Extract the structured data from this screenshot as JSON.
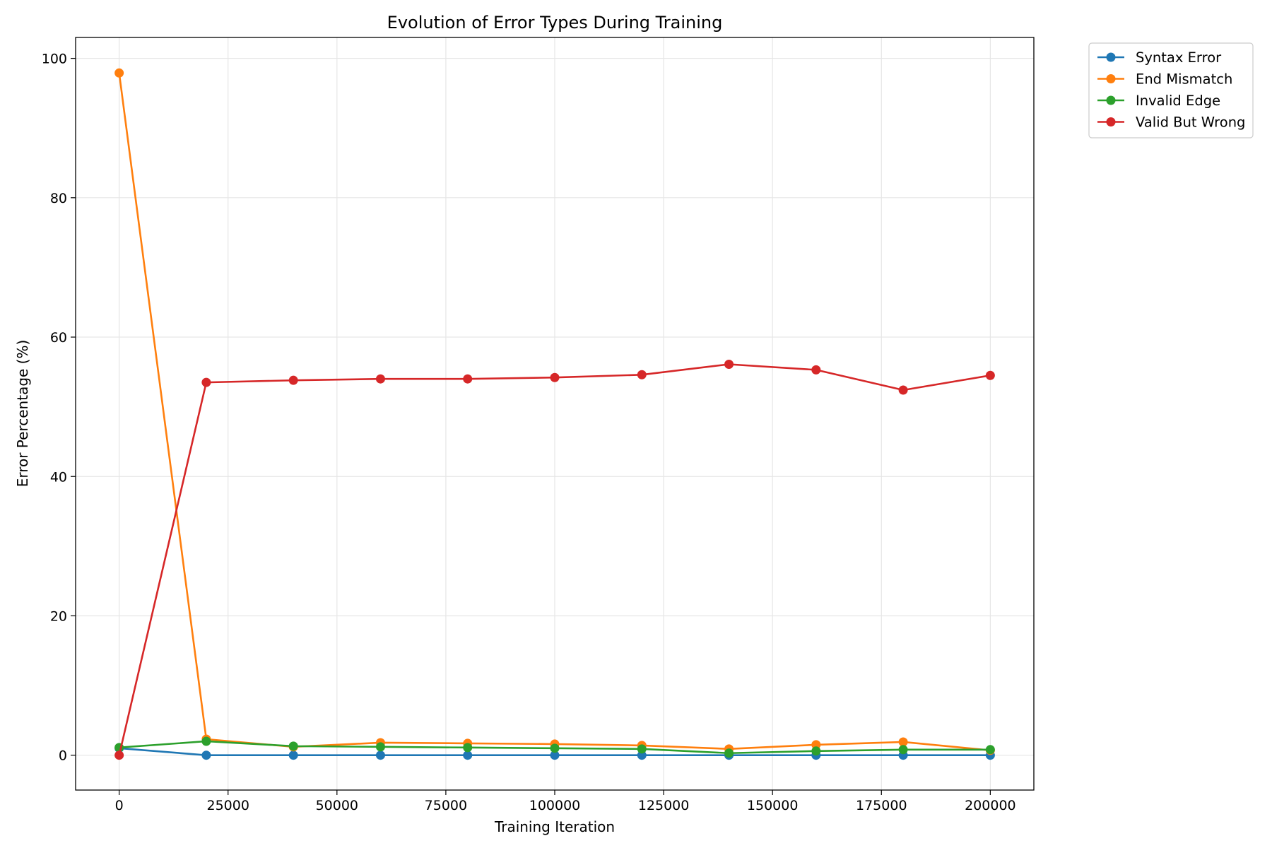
{
  "chart_data": {
    "type": "line",
    "title": "Evolution of Error Types During Training",
    "xlabel": "Training Iteration",
    "ylabel": "Error Percentage (%)",
    "xlim": [
      -10000,
      210000
    ],
    "ylim": [
      -5,
      103
    ],
    "xticks": [
      0,
      25000,
      50000,
      75000,
      100000,
      125000,
      150000,
      175000,
      200000
    ],
    "yticks": [
      0,
      20,
      40,
      60,
      80,
      100
    ],
    "grid": true,
    "legend_position": "outside-top-right",
    "x": [
      0,
      20000,
      40000,
      60000,
      80000,
      100000,
      120000,
      140000,
      160000,
      180000,
      200000
    ],
    "series": [
      {
        "name": "Syntax Error",
        "color": "#1f77b4",
        "values": [
          1.0,
          0.0,
          0.0,
          0.0,
          0.0,
          0.0,
          0.0,
          0.0,
          0.0,
          0.0,
          0.0
        ]
      },
      {
        "name": "End Mismatch",
        "color": "#ff7f0e",
        "values": [
          97.9,
          2.3,
          1.2,
          1.8,
          1.7,
          1.6,
          1.4,
          0.9,
          1.5,
          1.9,
          0.7
        ]
      },
      {
        "name": "Invalid Edge",
        "color": "#2ca02c",
        "values": [
          1.1,
          2.0,
          1.3,
          1.2,
          1.1,
          1.0,
          0.9,
          0.3,
          0.6,
          0.8,
          0.8
        ]
      },
      {
        "name": "Valid But Wrong",
        "color": "#d62728",
        "values": [
          0.0,
          53.5,
          53.8,
          54.0,
          54.0,
          54.2,
          54.6,
          56.1,
          55.3,
          52.4,
          54.5
        ]
      }
    ]
  }
}
